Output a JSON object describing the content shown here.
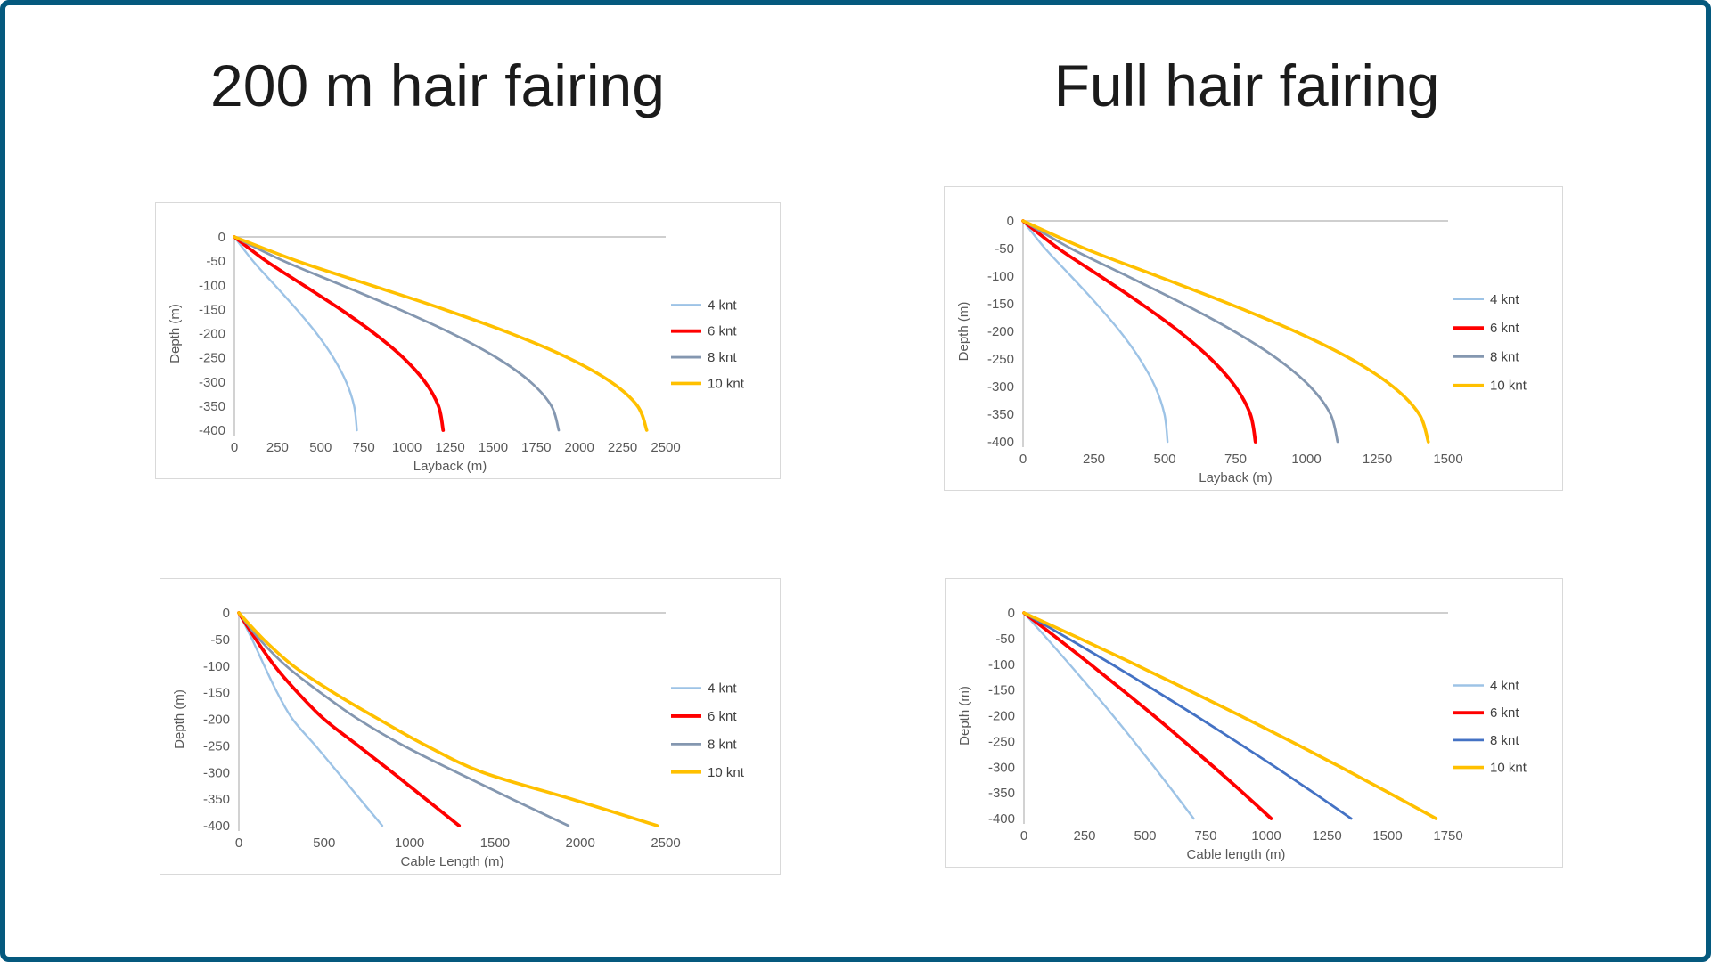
{
  "titles": {
    "left": "200 m hair fairing",
    "right": "Full hair fairing"
  },
  "frame_color": "#05597E",
  "axis_colors": {
    "line": "#BFBFBF",
    "tick_text": "#595959",
    "chart_border": "#D9D9D9",
    "legend_text": "#404040"
  },
  "series_colors": {
    "light_blue": "#9DC3E6",
    "red": "#FF0000",
    "blue_gray": "#8497B0",
    "bright_blue": "#4472C4",
    "yellow": "#FFC000"
  },
  "legend_labels": [
    "4 knt",
    "6 knt",
    "8 knt",
    "10 knt"
  ],
  "chart_data": [
    {
      "type": "line",
      "id": "layback-200m",
      "panel_title": "200 m hair fairing",
      "xlabel": "Layback (m)",
      "ylabel": "Depth (m)",
      "xlim": [
        0,
        2500
      ],
      "ylim": [
        0,
        -400
      ],
      "xticks": [
        0,
        250,
        500,
        750,
        1000,
        1250,
        1500,
        1750,
        2000,
        2250,
        2500
      ],
      "yticks": [
        0,
        -50,
        -100,
        -150,
        -200,
        -250,
        -300,
        -350,
        -400
      ],
      "grid": false,
      "legend_position": "right",
      "depths": [
        0,
        -50,
        -100,
        -150,
        -200,
        -250,
        -300,
        -350,
        -400
      ],
      "series": [
        {
          "name": "4 knt",
          "color": "#9DC3E6",
          "stroke_width": 2.4,
          "x": [
            0,
            108,
            235,
            361,
            477,
            574,
            648,
            694,
            710
          ]
        },
        {
          "name": "6 knt",
          "color": "#FF0000",
          "stroke_width": 3.8,
          "x": [
            0,
            185,
            401,
            616,
            812,
            979,
            1105,
            1183,
            1210
          ]
        },
        {
          "name": "8 knt",
          "color": "#8497B0",
          "stroke_width": 2.8,
          "x": [
            0,
            287,
            623,
            956,
            1262,
            1521,
            1716,
            1838,
            1880
          ]
        },
        {
          "name": "10 knt",
          "color": "#FFC000",
          "stroke_width": 3.6,
          "x": [
            0,
            365,
            792,
            1216,
            1604,
            1933,
            2182,
            2337,
            2390
          ]
        }
      ]
    },
    {
      "type": "line",
      "id": "layback-full",
      "panel_title": "Full hair fairing",
      "xlabel": "Layback (m)",
      "ylabel": "Depth (m)",
      "xlim": [
        0,
        1500
      ],
      "ylim": [
        0,
        -400
      ],
      "xticks": [
        0,
        250,
        500,
        750,
        1000,
        1250,
        1500
      ],
      "yticks": [
        0,
        -50,
        -100,
        -150,
        -200,
        -250,
        -300,
        -350,
        -400
      ],
      "grid": false,
      "legend_position": "right",
      "depths": [
        0,
        -50,
        -100,
        -150,
        -200,
        -250,
        -300,
        -350,
        -400
      ],
      "series": [
        {
          "name": "4 knt",
          "color": "#9DC3E6",
          "stroke_width": 2.4,
          "x": [
            0,
            78,
            169,
            259,
            342,
            412,
            466,
            499,
            510
          ]
        },
        {
          "name": "6 knt",
          "color": "#FF0000",
          "stroke_width": 3.8,
          "x": [
            0,
            125,
            272,
            417,
            550,
            663,
            749,
            802,
            820
          ]
        },
        {
          "name": "8 knt",
          "color": "#8497B0",
          "stroke_width": 2.8,
          "x": [
            0,
            169,
            368,
            565,
            745,
            898,
            1013,
            1085,
            1110
          ]
        },
        {
          "name": "10 knt",
          "color": "#FFC000",
          "stroke_width": 3.6,
          "x": [
            0,
            218,
            474,
            727,
            960,
            1157,
            1305,
            1398,
            1430
          ]
        }
      ]
    },
    {
      "type": "line",
      "id": "cable-length-200m",
      "panel_title": "200 m hair fairing",
      "xlabel": "Cable Length  (m)",
      "ylabel": "Depth (m)",
      "xlim": [
        0,
        2500
      ],
      "ylim": [
        0,
        -400
      ],
      "xticks": [
        0,
        500,
        1000,
        1500,
        2000,
        2500
      ],
      "yticks": [
        0,
        -50,
        -100,
        -150,
        -200,
        -250,
        -300,
        -350,
        -400
      ],
      "grid": false,
      "legend_position": "right",
      "depths": [
        0,
        -50,
        -100,
        -150,
        -200,
        -250,
        -300,
        -350,
        -400
      ],
      "series": [
        {
          "name": "4 knt",
          "color": "#9DC3E6",
          "stroke_width": 2.4,
          "x": [
            0,
            78,
            150,
            225,
            315,
            450,
            580,
            710,
            840
          ]
        },
        {
          "name": "6 knt",
          "color": "#FF0000",
          "stroke_width": 3.8,
          "x": [
            0,
            100,
            210,
            345,
            500,
            700,
            900,
            1095,
            1290
          ]
        },
        {
          "name": "8 knt",
          "color": "#8497B0",
          "stroke_width": 2.8,
          "x": [
            0,
            122,
            278,
            478,
            700,
            967,
            1278,
            1600,
            1930
          ]
        },
        {
          "name": "10 knt",
          "color": "#FFC000",
          "stroke_width": 3.6,
          "x": [
            0,
            145,
            320,
            555,
            820,
            1100,
            1430,
            1950,
            2450
          ]
        }
      ]
    },
    {
      "type": "line",
      "id": "cable-length-full",
      "panel_title": "Full hair fairing",
      "xlabel": "Cable length (m)",
      "ylabel": "Depth (m)",
      "xlim": [
        0,
        1750
      ],
      "ylim": [
        0,
        -400
      ],
      "xticks": [
        0,
        250,
        500,
        750,
        1000,
        1250,
        1500,
        1750
      ],
      "yticks": [
        0,
        -50,
        -100,
        -150,
        -200,
        -250,
        -300,
        -350,
        -400
      ],
      "grid": false,
      "legend_position": "right",
      "depths": [
        0,
        -50,
        -100,
        -150,
        -200,
        -250,
        -300,
        -350,
        -400
      ],
      "series": [
        {
          "name": "4 knt",
          "color": "#9DC3E6",
          "stroke_width": 2.4,
          "x": [
            0,
            95,
            188,
            279,
            368,
            454,
            538,
            620,
            700
          ]
        },
        {
          "name": "6 knt",
          "color": "#FF0000",
          "stroke_width": 3.8,
          "x": [
            0,
            139,
            274,
            406,
            536,
            661,
            784,
            904,
            1020
          ]
        },
        {
          "name": "8 knt",
          "color": "#4472C4",
          "stroke_width": 2.8,
          "x": [
            0,
            183,
            363,
            538,
            709,
            875,
            1038,
            1196,
            1350
          ]
        },
        {
          "name": "10 knt",
          "color": "#FFC000",
          "stroke_width": 3.6,
          "x": [
            0,
            231,
            457,
            677,
            893,
            1102,
            1307,
            1506,
            1700
          ]
        }
      ]
    }
  ]
}
